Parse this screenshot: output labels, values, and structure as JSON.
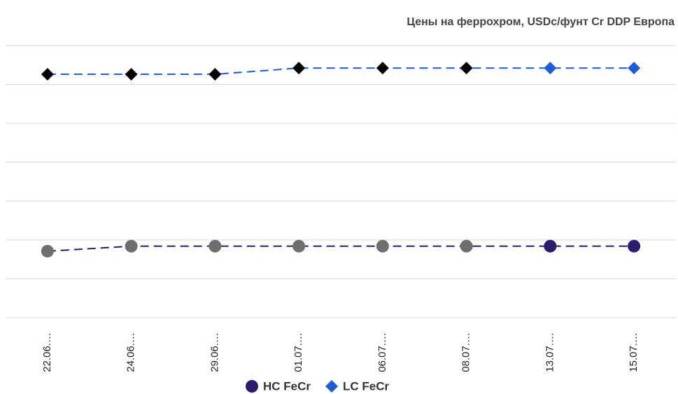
{
  "chart_data": {
    "type": "line",
    "title": "Цены на феррохром, USDc/фунт Cr DDP Европа",
    "categories": [
      "22.06.…",
      "24.06.…",
      "29.06.…",
      "01.07.…",
      "06.07.…",
      "08.07.…",
      "13.07.…",
      "15.07.…"
    ],
    "series": [
      {
        "name": "HC FeCr",
        "color": "#2f1b6e",
        "marker": "circle",
        "point_colors": [
          "#6e6e6e",
          "#6e6e6e",
          "#6e6e6e",
          "#6e6e6e",
          "#6e6e6e",
          "#6e6e6e",
          "#2f1b6e",
          "#2f1b6e"
        ],
        "values": [
          1.71,
          1.84,
          1.84,
          1.84,
          1.84,
          1.84,
          1.84,
          1.84
        ]
      },
      {
        "name": "LC FeCr",
        "color": "#1f5bd1",
        "marker": "diamond",
        "point_colors": [
          "#000000",
          "#000000",
          "#000000",
          "#000000",
          "#000000",
          "#000000",
          "#1f5bd1",
          "#1f5bd1"
        ],
        "values": [
          6.26,
          6.26,
          6.26,
          6.42,
          6.42,
          6.42,
          6.42,
          6.42
        ]
      }
    ],
    "ylim": [
      0,
      7
    ],
    "yticks": [
      0,
      1,
      2,
      3,
      4,
      5,
      6,
      7
    ],
    "grid": true,
    "legend": "bottom"
  }
}
